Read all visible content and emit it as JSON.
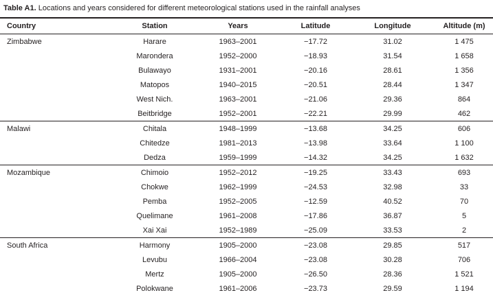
{
  "title": {
    "label": "Table A1.",
    "text": " Locations and years considered for different meteorological stations used in the rainfall analyses"
  },
  "columns": [
    "Country",
    "Station",
    "Years",
    "Latitude",
    "Longitude",
    "Altitude (m)"
  ],
  "sections": [
    {
      "country": "Zimbabwe",
      "rows": [
        {
          "station": "Harare",
          "years": "1963–2001",
          "latitude": "−17.72",
          "longitude": "31.02",
          "altitude": "1 475"
        },
        {
          "station": "Marondera",
          "years": "1952–2000",
          "latitude": "−18.93",
          "longitude": "31.54",
          "altitude": "1 658"
        },
        {
          "station": "Bulawayo",
          "years": "1931–2001",
          "latitude": "−20.16",
          "longitude": "28.61",
          "altitude": "1 356"
        },
        {
          "station": "Matopos",
          "years": "1940–2015",
          "latitude": "−20.51",
          "longitude": "28.44",
          "altitude": "1 347"
        },
        {
          "station": "West Nich.",
          "years": "1963–2001",
          "latitude": "−21.06",
          "longitude": "29.36",
          "altitude": "864"
        },
        {
          "station": "Beitbridge",
          "years": "1952–2001",
          "latitude": "−22.21",
          "longitude": "29.99",
          "altitude": "462"
        }
      ]
    },
    {
      "country": "Malawi",
      "rows": [
        {
          "station": "Chitala",
          "years": "1948–1999",
          "latitude": "−13.68",
          "longitude": "34.25",
          "altitude": "606"
        },
        {
          "station": "Chitedze",
          "years": "1981–2013",
          "latitude": "−13.98",
          "longitude": "33.64",
          "altitude": "1 100"
        },
        {
          "station": "Dedza",
          "years": "1959–1999",
          "latitude": "−14.32",
          "longitude": "34.25",
          "altitude": "1 632"
        }
      ]
    },
    {
      "country": "Mozambique",
      "rows": [
        {
          "station": "Chimoio",
          "years": "1952–2012",
          "latitude": "−19.25",
          "longitude": "33.43",
          "altitude": "693"
        },
        {
          "station": "Chokwe",
          "years": "1962–1999",
          "latitude": "−24.53",
          "longitude": "32.98",
          "altitude": "33"
        },
        {
          "station": "Pemba",
          "years": "1952–2005",
          "latitude": "−12.59",
          "longitude": "40.52",
          "altitude": "70"
        },
        {
          "station": "Quelimane",
          "years": "1961–2008",
          "latitude": "−17.86",
          "longitude": "36.87",
          "altitude": "5"
        },
        {
          "station": "Xai Xai",
          "years": "1952–1989",
          "latitude": "−25.09",
          "longitude": "33.53",
          "altitude": "2"
        }
      ]
    },
    {
      "country": "South Africa",
      "rows": [
        {
          "station": "Harmony",
          "years": "1905–2000",
          "latitude": "−23.08",
          "longitude": "29.85",
          "altitude": "517"
        },
        {
          "station": "Levubu",
          "years": "1966–2004",
          "latitude": "−23.08",
          "longitude": "30.28",
          "altitude": "706"
        },
        {
          "station": "Mertz",
          "years": "1905–2000",
          "latitude": "−26.50",
          "longitude": "28.36",
          "altitude": "1 521"
        },
        {
          "station": "Polokwane",
          "years": "1961–2006",
          "latitude": "−23.73",
          "longitude": "29.59",
          "altitude": "1 194"
        }
      ]
    }
  ],
  "colors": {
    "text": "#231f20",
    "rule": "#231f20",
    "background": "#ffffff"
  }
}
